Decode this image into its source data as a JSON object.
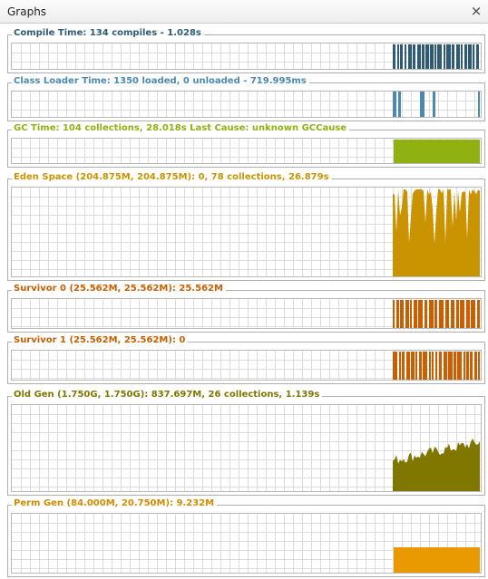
{
  "window": {
    "title": "Graphs",
    "close_symbol": "×"
  },
  "graphs": [
    {
      "id": "compile",
      "label": "Compile Time: 134 compiles - 1.028s",
      "color": "#2e5a74",
      "pattern": "pulse"
    },
    {
      "id": "classloader",
      "label": "Class Loader Time: 1350 loaded, 0 unloaded - 719.995ms",
      "color": "#4c89b1",
      "pattern": "sparse"
    },
    {
      "id": "gc",
      "label": "GC Time: 104 collections, 28.018s  Last Cause: unknown GCCause",
      "color": "#8fb112",
      "pattern": "solid"
    },
    {
      "id": "eden",
      "label": "Eden Space (204.875M, 204.875M): 0, 78 collections, 26.879s",
      "color": "#c99400",
      "pattern": "eden"
    },
    {
      "id": "survivor0",
      "label": "Survivor 0 (25.562M, 25.562M): 25.562M",
      "color": "#c95f00",
      "pattern": "pulse"
    },
    {
      "id": "survivor1",
      "label": "Survivor 1 (25.562M, 25.562M): 0",
      "color": "#c95f00",
      "pattern": "pulse"
    },
    {
      "id": "oldgen",
      "label": "Old Gen (1.750G, 1.750G): 837.697M, 26 collections, 1.139s",
      "color": "#7f7700",
      "pattern": "oldgen"
    },
    {
      "id": "permgen",
      "label": "Perm Gen (84.000M, 20.750M): 9.232M",
      "color": "#e89a00",
      "pattern": "perm"
    }
  ]
}
